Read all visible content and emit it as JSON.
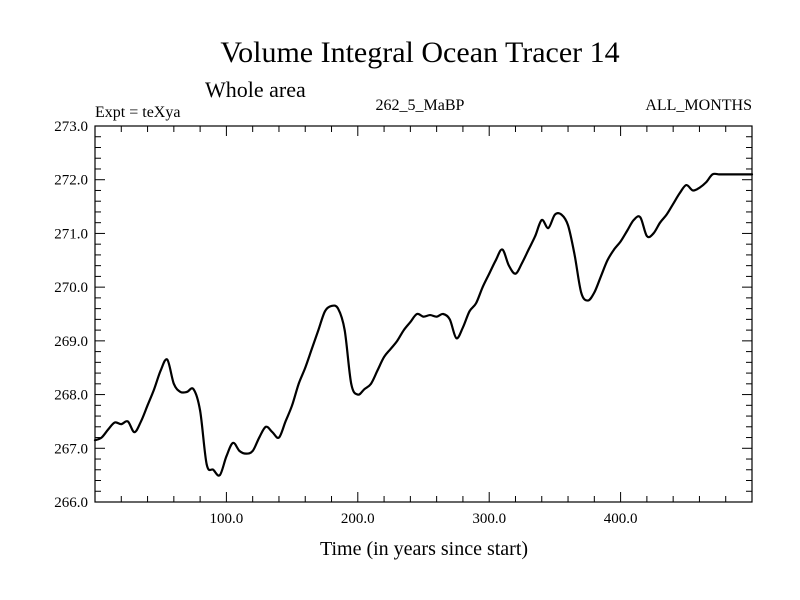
{
  "chart_data": {
    "type": "line",
    "title": "Volume Integral Ocean Tracer 14",
    "subtitle": "Whole area",
    "left_label": "Expt = teXya",
    "center_label": "262_5_MaBP",
    "right_label": "ALL_MONTHS",
    "xlabel": "Time (in years since start)",
    "ylabel": "",
    "xlim": [
      0,
      500
    ],
    "ylim": [
      266.0,
      273.0
    ],
    "x_tick_values": [
      100,
      200,
      300,
      400
    ],
    "x_tick_labels": [
      "100.0",
      "200.0",
      "300.0",
      "400.0"
    ],
    "y_tick_values": [
      266,
      267,
      268,
      269,
      270,
      271,
      272,
      273
    ],
    "y_tick_labels": [
      "266.0",
      "267.0",
      "268.0",
      "269.0",
      "270.0",
      "271.0",
      "272.0",
      "273.0"
    ],
    "grid": false,
    "line_color": "#000000",
    "series": [
      {
        "x": [
          0,
          5,
          10,
          15,
          20,
          25,
          30,
          35,
          40,
          45,
          50,
          55,
          60,
          65,
          70,
          75,
          80,
          85,
          90,
          95,
          100,
          105,
          110,
          115,
          120,
          125,
          130,
          135,
          140,
          145,
          150,
          155,
          160,
          165,
          170,
          175,
          180,
          185,
          190,
          195,
          200,
          205,
          210,
          215,
          220,
          225,
          230,
          235,
          240,
          245,
          250,
          255,
          260,
          265,
          270,
          275,
          280,
          285,
          290,
          295,
          300,
          305,
          310,
          315,
          320,
          325,
          330,
          335,
          340,
          345,
          350,
          355,
          360,
          365,
          370,
          375,
          380,
          385,
          390,
          395,
          400,
          405,
          410,
          415,
          420,
          425,
          430,
          435,
          440,
          445,
          450,
          455,
          460,
          465,
          470,
          475,
          480,
          485,
          490,
          495,
          500
        ],
        "values": [
          267.15,
          267.2,
          267.35,
          267.48,
          267.45,
          267.5,
          267.3,
          267.5,
          267.8,
          268.1,
          268.45,
          268.65,
          268.2,
          268.05,
          268.05,
          268.1,
          267.7,
          266.7,
          266.6,
          266.5,
          266.85,
          267.1,
          266.95,
          266.9,
          266.95,
          267.2,
          267.4,
          267.3,
          267.2,
          267.5,
          267.8,
          268.2,
          268.5,
          268.85,
          269.2,
          269.55,
          269.65,
          269.6,
          269.2,
          268.2,
          268.0,
          268.1,
          268.2,
          268.45,
          268.7,
          268.85,
          269.0,
          269.2,
          269.35,
          269.5,
          269.45,
          269.48,
          269.45,
          269.5,
          269.4,
          269.05,
          269.25,
          269.55,
          269.7,
          270.0,
          270.25,
          270.5,
          270.7,
          270.4,
          270.25,
          270.45,
          270.7,
          270.95,
          271.25,
          271.1,
          271.35,
          271.35,
          271.15,
          270.6,
          269.9,
          269.75,
          269.9,
          270.2,
          270.5,
          270.7,
          270.85,
          271.05,
          271.25,
          271.3,
          270.95,
          271.0,
          271.2,
          271.35,
          271.55,
          271.75,
          271.9,
          271.8,
          271.85,
          271.95,
          272.1,
          272.1,
          272.1,
          272.1,
          272.1,
          272.1,
          272.1
        ]
      }
    ]
  }
}
